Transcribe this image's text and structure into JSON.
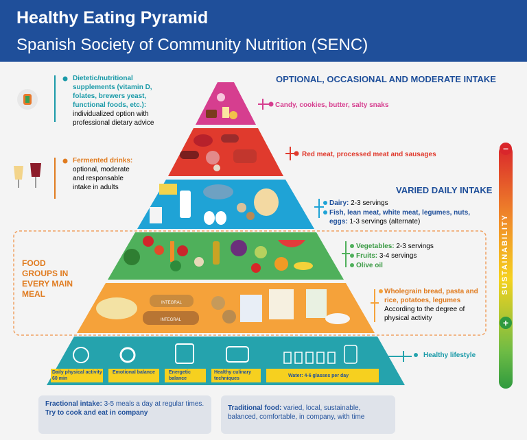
{
  "header": {
    "title": "Healthy Eating Pyramid",
    "subtitle": "Spanish Society of Community Nutrition (SENC)"
  },
  "sections": {
    "optional": "OPTIONAL, OCCASIONAL AND MODERATE INTAKE",
    "varied": "VARIED DAILY INTAKE",
    "food_groups": "FOOD GROUPS IN EVERY MAIN MEAL"
  },
  "sustainability": "SUSTAINABILITY",
  "left_notes": {
    "supplements_bold": "Dietetic/nutritional supplements (vitamin D, folates, brewers yeast, functional foods, etc.):",
    "supplements_text": "individualized option with professional dietary advice",
    "fermented_bold": "Fermented drinks:",
    "fermented_text": "optional, moderate and responsable intake in adults"
  },
  "right_labels": {
    "sweets": "Candy, cookies, butter, salty snaks",
    "meat": "Red meat, processed meat and sausages",
    "dairy_bold": "Dairy:",
    "dairy_text": "2-3 servings",
    "protein_bold": "Fish, lean meat, white meat, legumes, nuts, eggs:",
    "protein_text": "1-3 servings (alternate)",
    "veg_bold": "Vegetables:",
    "veg_text": "2-3 servings",
    "fruit_bold": "Fruits:",
    "fruit_text": "3-4 servings",
    "oil": "Olive oil",
    "grains_bold": "Wholegrain bread, pasta and rice, potatoes, legumes",
    "grains_text": "According to the degree of physical activity",
    "lifestyle": "Healthy lifestyle"
  },
  "base_labels": [
    "Daily physical activity 60 min",
    "Emotional balance",
    "Energetic balance",
    "Healthy culinary techniques",
    "Water: 4-6 glasses per day"
  ],
  "bread_labels": [
    "INTEGRAL",
    "INTEGRAL"
  ],
  "bottom": {
    "fractional_bold": "Fractional intake:",
    "fractional_text": "3-5 meals a day at regular times.",
    "cook": "Try to cook and eat in company",
    "traditional_bold": "Traditional food:",
    "traditional_text": "varied, local, sustainable, balanced, comfortable, in company, with time"
  },
  "colors": {
    "header": "#1f4f9a",
    "tier_sweets": "#d63e8f",
    "tier_meat": "#e03a2d",
    "tier_dairy": "#1fa3d6",
    "tier_veg": "#4fb05b",
    "tier_grains": "#f5a23a",
    "tier_base": "#25a3ad"
  },
  "icons": [
    "supplement-capsule-icon",
    "wine-glasses-icon",
    "stopwatch-icon",
    "gears-icon",
    "scale-icon",
    "pot-icon",
    "water-glasses-icon"
  ]
}
